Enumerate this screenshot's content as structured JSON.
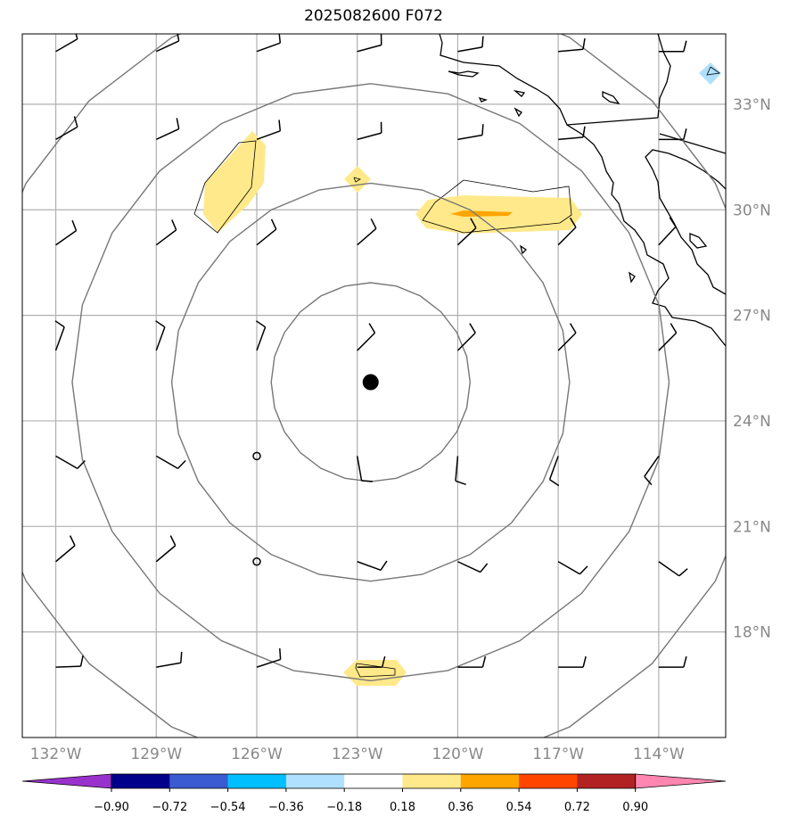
{
  "title": "2025082600 F072",
  "map": {
    "lon_range": [
      -133,
      -112
    ],
    "lat_range": [
      15,
      35
    ],
    "center_marker": {
      "lon": -122.6,
      "lat": 25.1
    }
  },
  "lon_labels": [
    {
      "lon": -132,
      "text": "132°W"
    },
    {
      "lon": -129,
      "text": "129°W"
    },
    {
      "lon": -126,
      "text": "126°W"
    },
    {
      "lon": -123,
      "text": "123°W"
    },
    {
      "lon": -120,
      "text": "120°W"
    },
    {
      "lon": -117,
      "text": "117°W"
    },
    {
      "lon": -114,
      "text": "114°W"
    }
  ],
  "lat_labels": [
    {
      "lat": 33,
      "text": "33°N"
    },
    {
      "lat": 30,
      "text": "30°N"
    },
    {
      "lat": 27,
      "text": "27°N"
    },
    {
      "lat": 24,
      "text": "24°N"
    },
    {
      "lat": 21,
      "text": "21°N"
    },
    {
      "lat": 18,
      "text": "18°N"
    }
  ],
  "range_rings_deg": [
    3,
    6,
    9,
    12
  ],
  "colorbar": {
    "colors": [
      "#9932CC",
      "#00008B",
      "#3A5BD1",
      "#00BFFF",
      "#B0E0FF",
      "#FFFFFF",
      "#FFE98A",
      "#FFA500",
      "#FF4500",
      "#B22222",
      "#FF86B0"
    ],
    "boundaries": [
      "−0.90",
      "−0.72",
      "−0.54",
      "−0.36",
      "−0.18",
      "0.18",
      "0.36",
      "0.54",
      "0.72",
      "0.90"
    ]
  },
  "wind_barbs_note": "barbs at 3-degree grid points",
  "barb_grid": {
    "lons": [
      -132,
      -129,
      -126,
      -123,
      -120,
      -117,
      -114
    ],
    "lats": [
      34.5,
      32,
      29,
      26,
      23,
      20,
      17
    ]
  }
}
